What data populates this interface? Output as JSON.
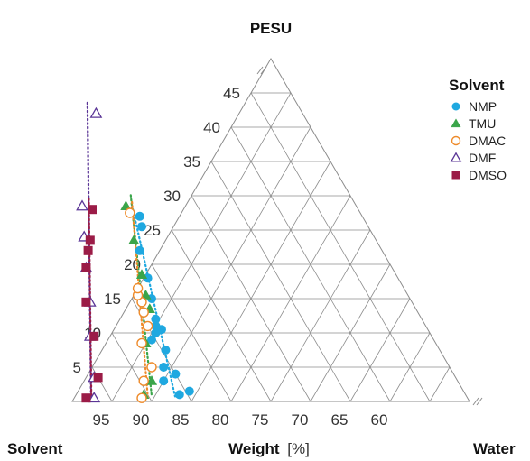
{
  "chart_data": {
    "type": "scatter",
    "subtype": "ternary",
    "vertices": {
      "top": "PESU",
      "left": "Solvent",
      "right": "Water"
    },
    "axis_title": {
      "bold": "Weight",
      "unit": "[%]"
    },
    "pesu_ticks": [
      "5",
      "10",
      "15",
      "20",
      "25",
      "30",
      "35",
      "40",
      "45"
    ],
    "solvent_ticks": [
      "95",
      "90",
      "85",
      "80",
      "75",
      "70",
      "65",
      "60"
    ],
    "grid": true,
    "legend": {
      "title": "Solvent",
      "placement": "top-right"
    },
    "series": [
      {
        "name": "NMP",
        "marker": "circle-filled",
        "color": "#1fa8e0",
        "points": [
          [
            86,
            1
          ],
          [
            84.5,
            1.5
          ],
          [
            87,
            3
          ],
          [
            85,
            4
          ],
          [
            86,
            5
          ],
          [
            84.5,
            7.5
          ],
          [
            85.5,
            9
          ],
          [
            84.5,
            10
          ],
          [
            83.5,
            10.5
          ],
          [
            84,
            11
          ],
          [
            83.5,
            12
          ],
          [
            82.5,
            15
          ],
          [
            81.5,
            18
          ],
          [
            80.5,
            22
          ],
          [
            78.5,
            25.5
          ],
          [
            78,
            27
          ]
        ]
      },
      {
        "name": "TMU",
        "marker": "triangle-filled",
        "color": "#3aa54a",
        "points": [
          [
            90.5,
            1
          ],
          [
            88.5,
            3
          ],
          [
            86.5,
            8.5
          ],
          [
            83.5,
            13.5
          ],
          [
            83,
            15.5
          ],
          [
            82,
            18.5
          ],
          [
            80.5,
            23.5
          ],
          [
            79,
            28.5
          ]
        ]
      },
      {
        "name": "DMAC",
        "marker": "circle-open",
        "color": "#ee8b2b",
        "points": [
          [
            91,
            0.5
          ],
          [
            89.5,
            3
          ],
          [
            87.5,
            5
          ],
          [
            87,
            8.5
          ],
          [
            85,
            11
          ],
          [
            84.5,
            13
          ],
          [
            84,
            14.5
          ],
          [
            84,
            15.5
          ],
          [
            83.5,
            16.5
          ],
          [
            79,
            27.5
          ]
        ]
      },
      {
        "name": "DMF",
        "marker": "triangle-open",
        "color": "#5a3596",
        "points": [
          [
            97,
            0.5
          ],
          [
            95.5,
            3.5
          ],
          [
            93,
            9.5
          ],
          [
            90.5,
            14.5
          ],
          [
            88.5,
            19.5
          ],
          [
            86.5,
            24
          ],
          [
            84.5,
            28.5
          ],
          [
            76,
            42
          ]
        ]
      },
      {
        "name": "DMSO",
        "marker": "square-filled",
        "color": "#9b1c47",
        "points": [
          [
            98,
            0.5
          ],
          [
            95,
            3.5
          ],
          [
            92.5,
            9.5
          ],
          [
            91,
            14.5
          ],
          [
            88.5,
            19.5
          ],
          [
            87,
            22
          ],
          [
            86,
            23.5
          ],
          [
            83.5,
            28
          ]
        ]
      }
    ]
  }
}
